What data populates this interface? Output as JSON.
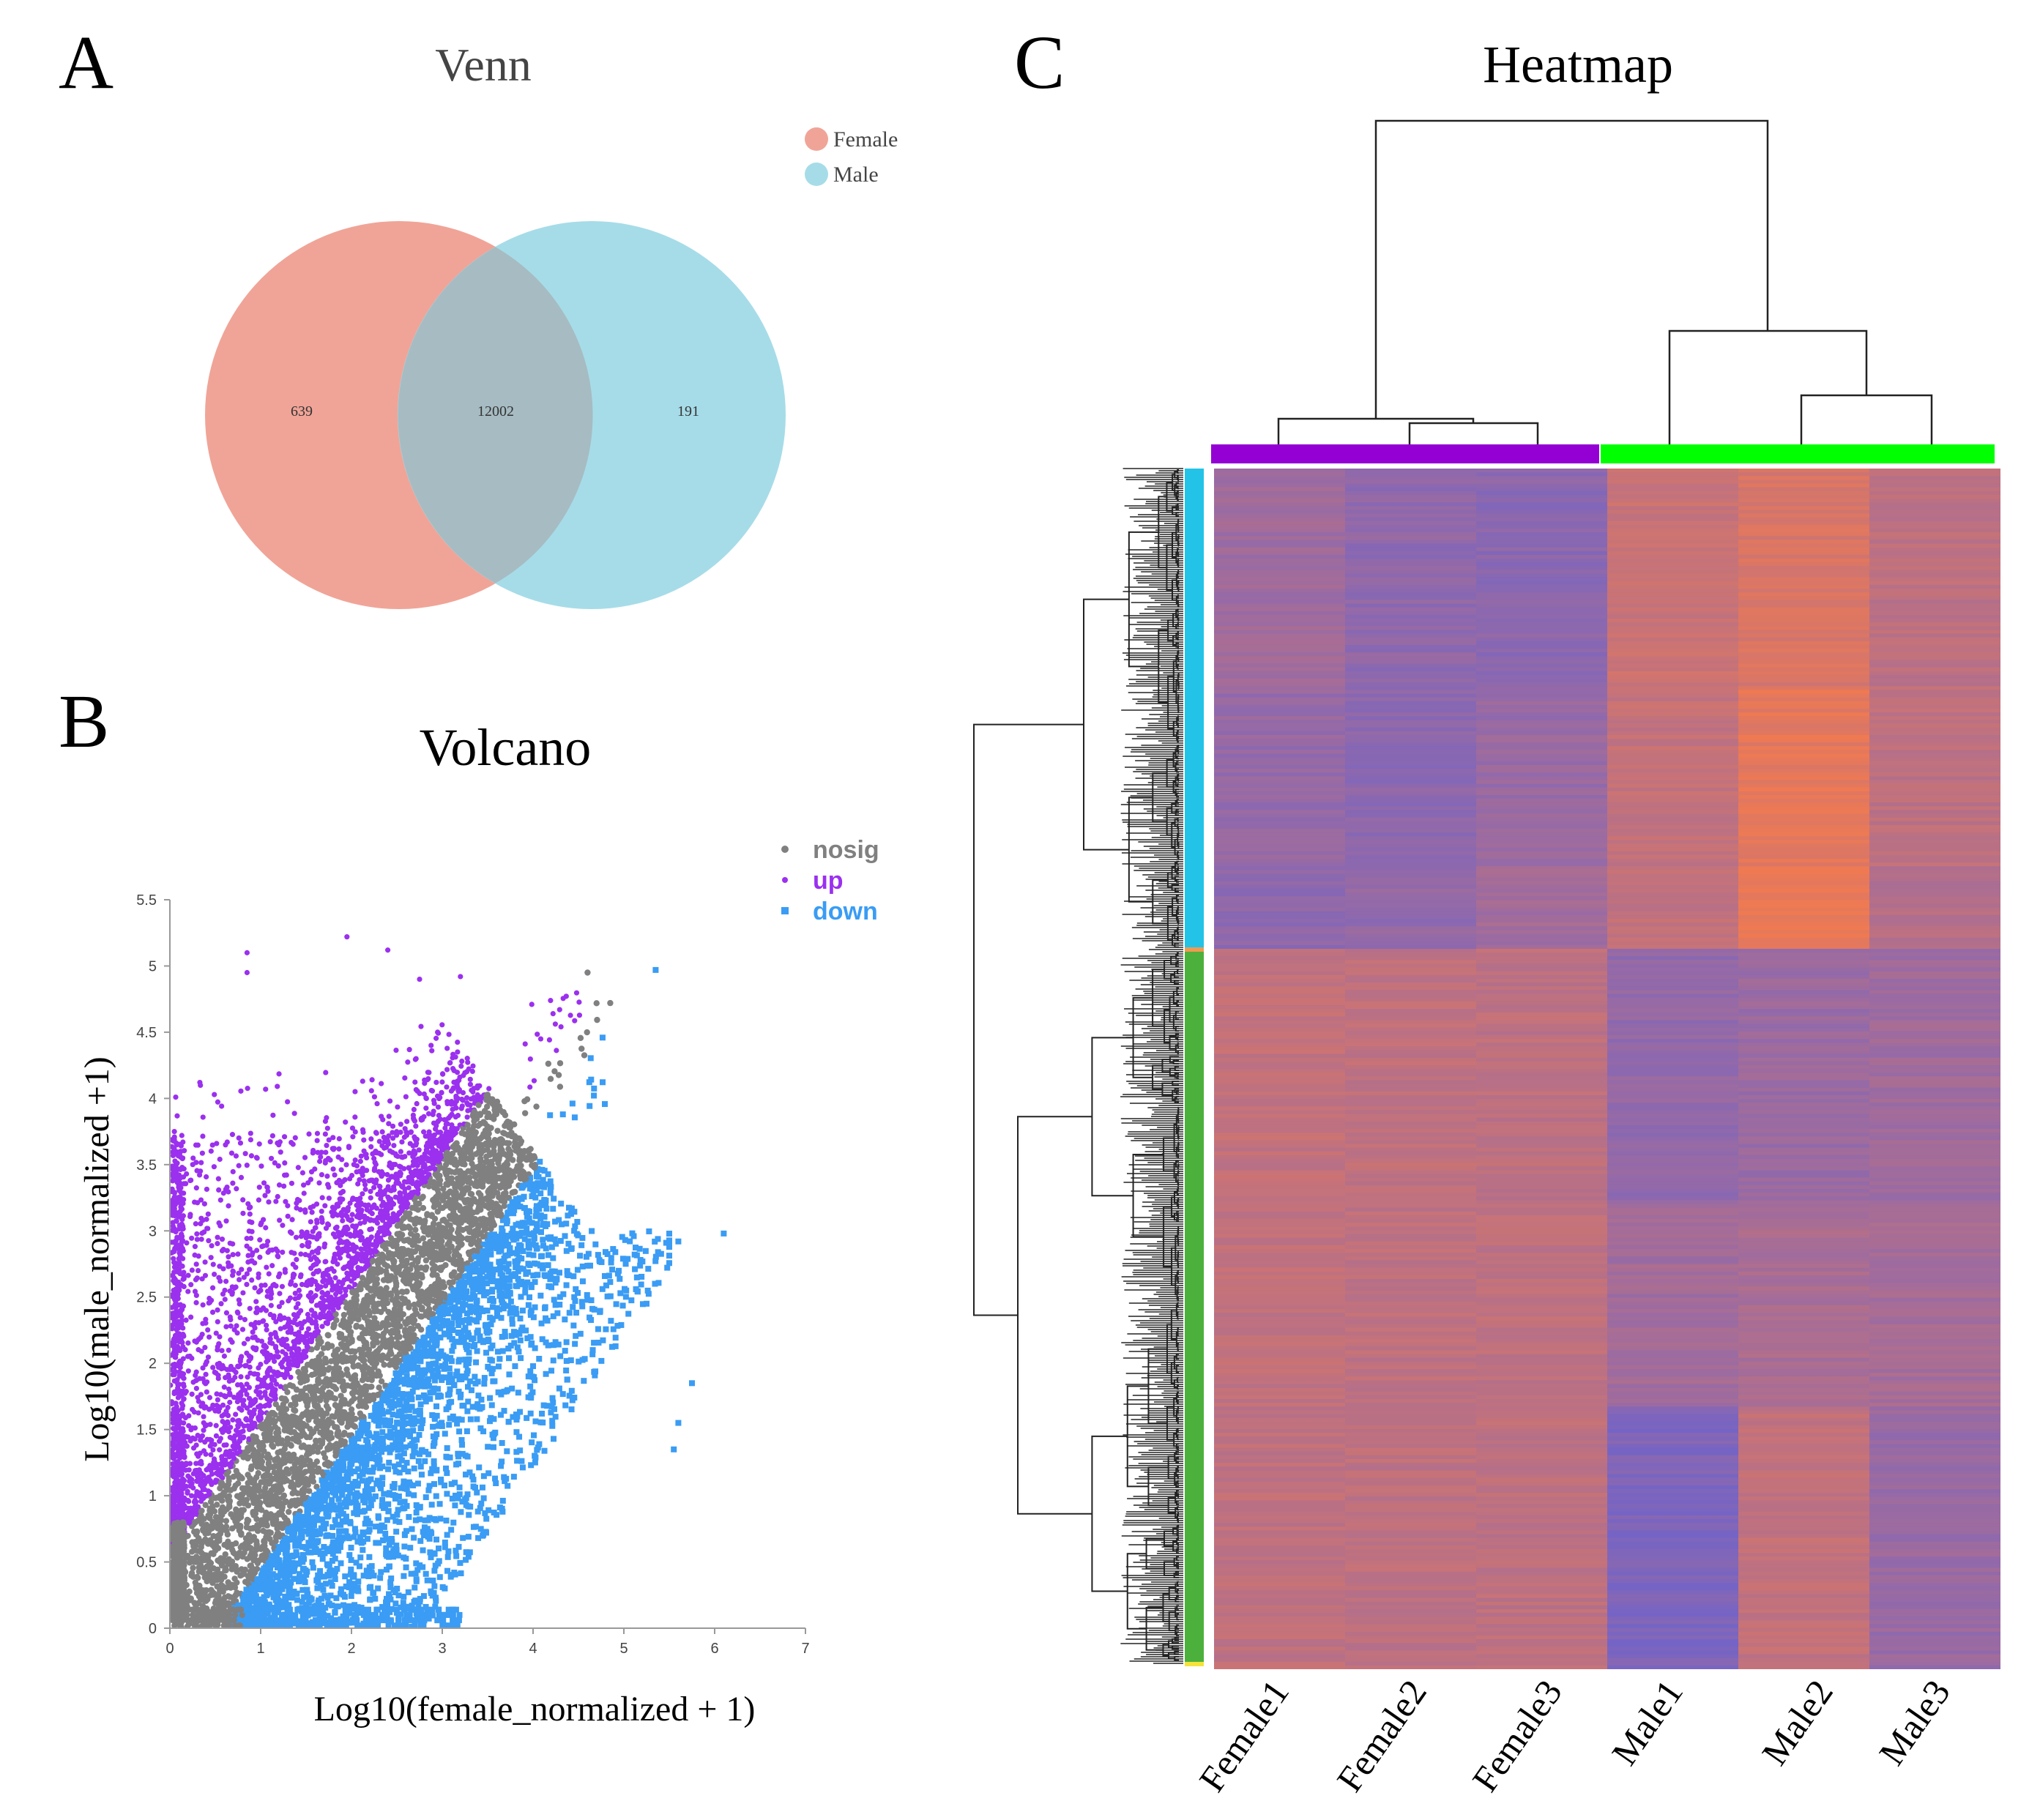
{
  "panels": {
    "a_letter": "A",
    "b_letter": "B",
    "c_letter": "C"
  },
  "colors": {
    "female": "#f0a497",
    "male": "#a6dce8",
    "overlap": "#a6bcc2",
    "nosig": "#808080",
    "up": "#9b30ef",
    "down": "#3a9cf4",
    "heat_low": "#6a62cf",
    "heat_high": "#ef7a52",
    "col_female": "#9400d3",
    "col_male": "#00ff00",
    "row_cluster1": "#22c3e6",
    "row_cluster2": "#4cb03c"
  },
  "chart_data": [
    {
      "type": "venn",
      "title": "Venn",
      "sets": [
        {
          "name": "Female",
          "only": "639"
        },
        {
          "name": "Male",
          "only": "191"
        }
      ],
      "intersection": "12002",
      "legend": [
        "Female",
        "Male"
      ]
    },
    {
      "type": "scatter",
      "title": "Volcano",
      "xlabel": "Log10(female_normalized + 1)",
      "ylabel": "Log10(male_normalized +1)",
      "xlim": [
        0,
        7
      ],
      "ylim": [
        0,
        5.5
      ],
      "xticks": [
        "0",
        "1",
        "2",
        "3",
        "4",
        "5",
        "6",
        "7"
      ],
      "yticks": [
        "0",
        "0.5",
        "1",
        "1.5",
        "2",
        "2.5",
        "3",
        "3.5",
        "4",
        "4.5",
        "5",
        "5.5"
      ],
      "series": [
        {
          "name": "nosig",
          "description": "points along the diagonal x≈y"
        },
        {
          "name": "up",
          "description": "points above the diagonal (male > female)"
        },
        {
          "name": "down",
          "description": "points below the diagonal (female > male)"
        }
      ],
      "legend": [
        "nosig",
        "up",
        "down"
      ],
      "outliers": [
        {
          "series": "up",
          "x": 0.85,
          "y": 5.1
        },
        {
          "series": "up",
          "x": 1.95,
          "y": 5.22
        },
        {
          "series": "up",
          "x": 2.4,
          "y": 5.12
        },
        {
          "series": "up",
          "x": 0.85,
          "y": 4.95
        },
        {
          "series": "up",
          "x": 2.75,
          "y": 4.9
        },
        {
          "series": "up",
          "x": 3.2,
          "y": 4.92
        },
        {
          "series": "down",
          "x": 5.35,
          "y": 4.97
        },
        {
          "series": "down",
          "x": 6.1,
          "y": 2.98
        },
        {
          "series": "down",
          "x": 5.75,
          "y": 1.85
        },
        {
          "series": "down",
          "x": 5.6,
          "y": 1.55
        },
        {
          "series": "down",
          "x": 5.55,
          "y": 1.35
        },
        {
          "series": "down",
          "x": 5.6,
          "y": 2.92
        },
        {
          "series": "down",
          "x": 5.25,
          "y": 2.45
        },
        {
          "series": "nosig",
          "x": 4.6,
          "y": 4.95
        },
        {
          "series": "nosig",
          "x": 4.85,
          "y": 4.72
        }
      ]
    },
    {
      "type": "heatmap",
      "title": "Heatmap",
      "columns": [
        "Female1",
        "Female2",
        "Female3",
        "Male1",
        "Male2",
        "Male3"
      ],
      "column_groups": [
        {
          "name": "Female",
          "columns": [
            "Female1",
            "Female2",
            "Female3"
          ]
        },
        {
          "name": "Male",
          "columns": [
            "Male1",
            "Male2",
            "Male3"
          ]
        }
      ],
      "row_clusters": [
        {
          "name": "cluster1",
          "fraction": 0.4
        },
        {
          "name": "cluster2",
          "fraction": 0.6
        }
      ],
      "column_dendrogram": [
        {
          "merge": [
            "Female2",
            "Female3"
          ],
          "height": 0.12
        },
        {
          "merge": [
            "Female1",
            "Female2+Female3"
          ],
          "height": 0.15
        },
        {
          "merge": [
            "Male2",
            "Male3"
          ],
          "height": 0.2
        },
        {
          "merge": [
            "Male1",
            "Male2+Male3"
          ],
          "height": 0.52
        },
        {
          "merge": [
            "Female",
            "Male"
          ],
          "height": 1.0
        }
      ],
      "blocks": [
        {
          "from": 0.0,
          "to": 0.18,
          "values": [
            0.4,
            0.28,
            0.25,
            0.72,
            0.82,
            0.62
          ]
        },
        {
          "from": 0.18,
          "to": 0.33,
          "values": [
            0.32,
            0.26,
            0.35,
            0.68,
            0.92,
            0.62
          ]
        },
        {
          "from": 0.33,
          "to": 0.4,
          "values": [
            0.28,
            0.3,
            0.42,
            0.66,
            0.98,
            0.55
          ]
        },
        {
          "from": 0.4,
          "to": 0.61,
          "values": [
            0.66,
            0.64,
            0.62,
            0.3,
            0.36,
            0.4
          ]
        },
        {
          "from": 0.61,
          "to": 0.78,
          "values": [
            0.65,
            0.63,
            0.63,
            0.42,
            0.48,
            0.45
          ]
        },
        {
          "from": 0.78,
          "to": 1.0,
          "values": [
            0.64,
            0.63,
            0.63,
            0.15,
            0.66,
            0.35
          ]
        }
      ]
    }
  ]
}
